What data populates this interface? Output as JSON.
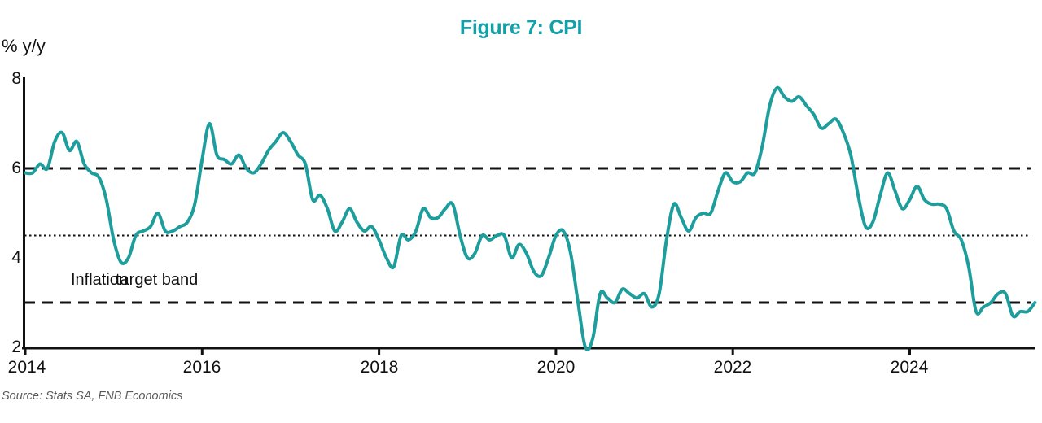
{
  "figure": {
    "title": "Figure 7: CPI",
    "unit_label": "% y/y",
    "source": "Source: Stats SA, FNB Economics",
    "annotation": {
      "part1": "Inflation",
      "part2": "target band"
    }
  },
  "colors": {
    "line": "#1D9E9C",
    "title": "#14A0A8",
    "axis": "#111111",
    "source_text": "#595959"
  },
  "chart_data": {
    "type": "line",
    "title": "Figure 7: CPI",
    "xlabel": "",
    "ylabel": "% y/y",
    "ylim": [
      2,
      8
    ],
    "y_ticks": [
      8,
      6,
      4,
      2
    ],
    "y_tick_labels": [
      "8",
      "6",
      "4",
      "2"
    ],
    "x_ticks": [
      2014,
      2016,
      2018,
      2020,
      2022,
      2024
    ],
    "x_tick_labels": [
      "2014",
      "2016",
      "2018",
      "2020",
      "2022",
      "2024"
    ],
    "x_start": "2014-01",
    "x_end": "2025-06",
    "frequency": "monthly",
    "grid": false,
    "legend_position": "none",
    "reference_lines": [
      {
        "value": 6.0,
        "style": "dashed",
        "label": "inflation target band upper (6%)"
      },
      {
        "value": 4.5,
        "style": "dotted",
        "label": "inflation target midpoint (4.5%)"
      },
      {
        "value": 3.0,
        "style": "dashed",
        "label": "inflation target band lower (3%)"
      }
    ],
    "series": [
      {
        "name": "CPI % y/y",
        "values": [
          5.9,
          5.9,
          6.1,
          6.0,
          6.6,
          6.8,
          6.4,
          6.6,
          6.1,
          5.9,
          5.8,
          5.3,
          4.4,
          3.9,
          4.0,
          4.5,
          4.6,
          4.7,
          5.0,
          4.6,
          4.6,
          4.7,
          4.8,
          5.2,
          6.2,
          7.0,
          6.3,
          6.2,
          6.1,
          6.3,
          6.0,
          5.9,
          6.1,
          6.4,
          6.6,
          6.8,
          6.6,
          6.3,
          6.1,
          5.3,
          5.4,
          5.1,
          4.6,
          4.8,
          5.1,
          4.8,
          4.6,
          4.7,
          4.4,
          4.0,
          3.8,
          4.5,
          4.4,
          4.6,
          5.1,
          4.9,
          4.9,
          5.1,
          5.2,
          4.5,
          4.0,
          4.1,
          4.5,
          4.4,
          4.5,
          4.5,
          4.0,
          4.3,
          4.1,
          3.7,
          3.6,
          4.0,
          4.5,
          4.6,
          4.1,
          3.0,
          2.0,
          2.2,
          3.2,
          3.1,
          3.0,
          3.3,
          3.2,
          3.1,
          3.2,
          2.9,
          3.2,
          4.4,
          5.2,
          4.9,
          4.6,
          4.9,
          5.0,
          5.0,
          5.5,
          5.9,
          5.7,
          5.7,
          5.9,
          5.9,
          6.5,
          7.4,
          7.8,
          7.6,
          7.5,
          7.6,
          7.4,
          7.2,
          6.9,
          7.0,
          7.1,
          6.8,
          6.3,
          5.4,
          4.7,
          4.8,
          5.4,
          5.9,
          5.5,
          5.1,
          5.3,
          5.6,
          5.3,
          5.2,
          5.2,
          5.1,
          4.6,
          4.4,
          3.8,
          2.8,
          2.9,
          3.0,
          3.2,
          3.2,
          2.7,
          2.8,
          2.8,
          3.0
        ]
      }
    ]
  }
}
